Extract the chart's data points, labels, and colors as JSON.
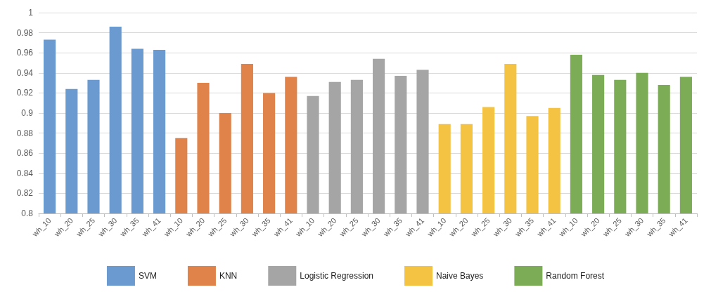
{
  "chart_data": {
    "type": "bar",
    "categories": [
      "wh_10",
      "wh_20",
      "wh_25",
      "wh_30",
      "wh_35",
      "wh_41",
      "wh_10",
      "wh_20",
      "wh_25",
      "wh_30",
      "wh_35",
      "wh_41",
      "wh_10",
      "wh_20",
      "wh_25",
      "wh_30",
      "wh_35",
      "wh_41",
      "wh_10",
      "wh_20",
      "wh_25",
      "wh_30",
      "wh_35",
      "wh_41",
      "wh_10",
      "wh_20",
      "wh_25",
      "wh_30",
      "wh_35",
      "wh_41"
    ],
    "series": [
      {
        "name": "SVM",
        "color": "#6a9ad0",
        "values": [
          0.973,
          0.924,
          0.933,
          0.986,
          0.964,
          0.963,
          null,
          null,
          null,
          null,
          null,
          null,
          null,
          null,
          null,
          null,
          null,
          null,
          null,
          null,
          null,
          null,
          null,
          null,
          null,
          null,
          null,
          null,
          null,
          null
        ]
      },
      {
        "name": "KNN",
        "color": "#e0834a",
        "values": [
          null,
          null,
          null,
          null,
          null,
          null,
          0.875,
          0.93,
          0.9,
          0.949,
          0.92,
          0.936,
          null,
          null,
          null,
          null,
          null,
          null,
          null,
          null,
          null,
          null,
          null,
          null,
          null,
          null,
          null,
          null,
          null,
          null
        ]
      },
      {
        "name": "Logistic Regression",
        "color": "#a5a5a5",
        "values": [
          null,
          null,
          null,
          null,
          null,
          null,
          null,
          null,
          null,
          null,
          null,
          null,
          0.917,
          0.931,
          0.933,
          0.954,
          0.937,
          0.943,
          null,
          null,
          null,
          null,
          null,
          null,
          null,
          null,
          null,
          null,
          null,
          null
        ]
      },
      {
        "name": "Naive Bayes",
        "color": "#f4c344",
        "values": [
          null,
          null,
          null,
          null,
          null,
          null,
          null,
          null,
          null,
          null,
          null,
          null,
          null,
          null,
          null,
          null,
          null,
          null,
          0.889,
          0.889,
          0.906,
          0.949,
          0.897,
          0.905,
          null,
          null,
          null,
          null,
          null,
          null
        ]
      },
      {
        "name": "Random Forest",
        "color": "#7dac56",
        "values": [
          null,
          null,
          null,
          null,
          null,
          null,
          null,
          null,
          null,
          null,
          null,
          null,
          null,
          null,
          null,
          null,
          null,
          null,
          null,
          null,
          null,
          null,
          null,
          null,
          0.958,
          0.938,
          0.933,
          0.94,
          0.928,
          0.936
        ]
      }
    ],
    "ylim": [
      0.8,
      1
    ],
    "yticks": [
      0.8,
      0.82,
      0.84,
      0.86,
      0.88,
      0.9,
      0.92,
      0.94,
      0.96,
      0.98,
      1
    ],
    "grid": "y",
    "legend": "bottom"
  }
}
